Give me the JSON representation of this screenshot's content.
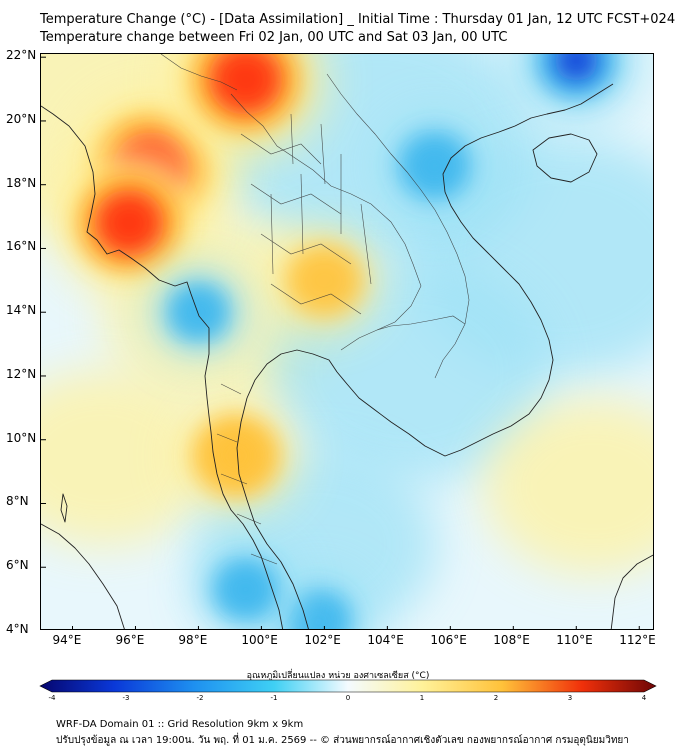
{
  "title": {
    "line1": "Temperature Change (°C) - [Data Assimilation] _ Initial Time : Thursday 01 Jan, 12 UTC FCST+024",
    "line2": "Temperature change between Fri 02 Jan, 00 UTC and Sat 03 Jan, 00 UTC"
  },
  "map": {
    "lon_range": [
      93,
      112.5
    ],
    "lat_range": [
      4,
      22.1
    ],
    "lat_ticks": [
      {
        "value": 22,
        "label": "22°N"
      },
      {
        "value": 20,
        "label": "20°N"
      },
      {
        "value": 18,
        "label": "18°N"
      },
      {
        "value": 16,
        "label": "16°N"
      },
      {
        "value": 14,
        "label": "14°N"
      },
      {
        "value": 12,
        "label": "12°N"
      },
      {
        "value": 10,
        "label": "10°N"
      },
      {
        "value": 8,
        "label": "8°N"
      },
      {
        "value": 6,
        "label": "6°N"
      },
      {
        "value": 4,
        "label": "4°N"
      }
    ],
    "lon_ticks": [
      {
        "value": 94,
        "label": "94°E"
      },
      {
        "value": 96,
        "label": "96°E"
      },
      {
        "value": 98,
        "label": "98°E"
      },
      {
        "value": 100,
        "label": "100°E"
      },
      {
        "value": 102,
        "label": "102°E"
      },
      {
        "value": 104,
        "label": "104°E"
      },
      {
        "value": 106,
        "label": "106°E"
      },
      {
        "value": 108,
        "label": "108°E"
      },
      {
        "value": 110,
        "label": "110°E"
      },
      {
        "value": 112,
        "label": "112°E"
      }
    ],
    "field_features": [
      {
        "kind": "warm",
        "lon": 96.5,
        "lat": 18.5,
        "strength": 3.0
      },
      {
        "kind": "warm",
        "lon": 99.5,
        "lat": 21.3,
        "strength": 2.8
      },
      {
        "kind": "warm",
        "lon": 95.8,
        "lat": 16.8,
        "strength": 2.5
      },
      {
        "kind": "warm",
        "lon": 102.0,
        "lat": 15.0,
        "strength": 0.9
      },
      {
        "kind": "warm",
        "lon": 99.2,
        "lat": 9.5,
        "strength": 1.4
      },
      {
        "kind": "cold",
        "lon": 110.0,
        "lat": 21.9,
        "strength": -2.5
      },
      {
        "kind": "cold",
        "lon": 105.5,
        "lat": 18.6,
        "strength": -1.8
      },
      {
        "kind": "cold",
        "lon": 101.8,
        "lat": 4.3,
        "strength": -1.5
      },
      {
        "kind": "cold",
        "lon": 99.5,
        "lat": 5.3,
        "strength": -1.4
      },
      {
        "kind": "cold",
        "lon": 98.0,
        "lat": 14.0,
        "strength": -1.2
      }
    ],
    "colors": {
      "neutral": "#e8f7fc",
      "warm_low": "#fff2a0",
      "warm_mid": "#ffc23a",
      "warm_high": "#ff2a0a",
      "cold_low": "#9fe2f6",
      "cold_mid": "#3fb8ee",
      "cold_high": "#0a38d8",
      "coast": "#222222"
    }
  },
  "colorbar": {
    "title": "อุณหภูมิเปลี่ยนแปลง หน่วย องศาเซลเซียส (°C)",
    "range": [
      -4,
      4
    ],
    "ticks": [
      "-4",
      "-3",
      "-2",
      "-1",
      "0",
      "1",
      "2",
      "3",
      "4"
    ]
  },
  "footer": {
    "line1": "WRF-DA Domain 01 :: Grid Resolution 9km x 9km",
    "line2": "ปรับปรุงข้อมูล ณ เวลา 19:00น. วัน พฤ. ที่ 01 ม.ค. 2569 -- © ส่วนพยากรณ์อากาศเชิงตัวเลข กองพยากรณ์อากาศ กรมอุตุนิยมวิทยา"
  }
}
